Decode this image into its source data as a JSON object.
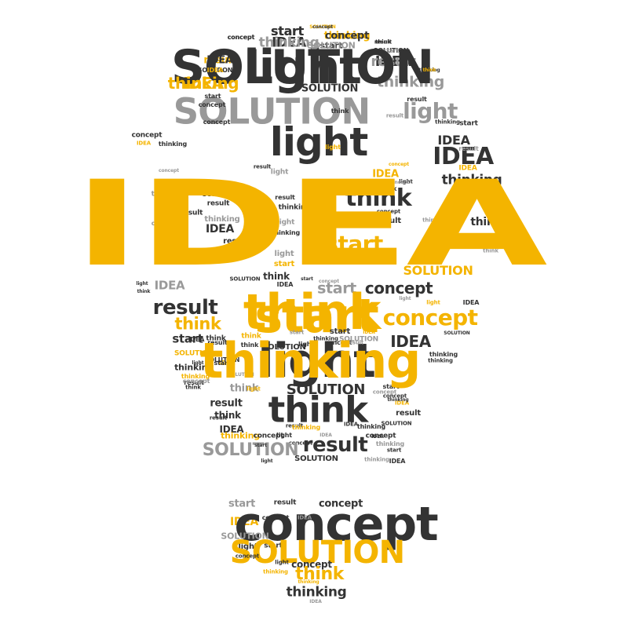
{
  "palette": {
    "dark": "#333333",
    "gray": "#999999",
    "yellow": "#f4b400"
  },
  "words": [
    {
      "text": "start",
      "tone": "dark"
    },
    {
      "text": "SOLUTION",
      "tone": "yellow"
    },
    {
      "text": "thinking",
      "tone": "yellow"
    },
    {
      "text": "IDEA",
      "tone": "dark"
    },
    {
      "text": "concept",
      "tone": "dark"
    },
    {
      "text": "start",
      "tone": "dark"
    },
    {
      "text": "think",
      "tone": "dark"
    },
    {
      "text": "SOLUTION",
      "tone": "dark"
    },
    {
      "text": "IDEA",
      "tone": "dark"
    },
    {
      "text": "result",
      "tone": "yellow"
    },
    {
      "text": "light",
      "tone": "dark"
    },
    {
      "text": "SOLUTION",
      "tone": "dark"
    },
    {
      "text": "thinking",
      "tone": "dark"
    },
    {
      "text": "IDEA",
      "tone": "yellow"
    },
    {
      "text": "thinking",
      "tone": "gray"
    },
    {
      "text": "SOLUTION",
      "tone": "dark"
    },
    {
      "text": "result",
      "tone": "dark"
    },
    {
      "text": "SOLUTION",
      "tone": "gray"
    },
    {
      "text": "light",
      "tone": "gray"
    },
    {
      "text": "think",
      "tone": "dark"
    },
    {
      "text": "start",
      "tone": "dark"
    },
    {
      "text": "concept",
      "tone": "dark"
    },
    {
      "text": "concept",
      "tone": "dark"
    },
    {
      "text": "result",
      "tone": "gray"
    },
    {
      "text": "start",
      "tone": "dark"
    },
    {
      "text": "concept",
      "tone": "dark"
    },
    {
      "text": "thinking",
      "tone": "dark"
    },
    {
      "text": "IDEA",
      "tone": "dark"
    },
    {
      "text": "IDEA",
      "tone": "dark"
    },
    {
      "text": "light",
      "tone": "dark"
    },
    {
      "text": "IDEA",
      "tone": "yellow"
    },
    {
      "text": "thinking",
      "tone": "dark"
    },
    {
      "text": "light",
      "tone": "yellow"
    },
    {
      "text": "result",
      "tone": "gray"
    },
    {
      "text": "concept",
      "tone": "yellow"
    },
    {
      "text": "IDEA",
      "tone": "yellow"
    },
    {
      "text": "thinking",
      "tone": "dark"
    },
    {
      "text": "concept",
      "tone": "gray"
    },
    {
      "text": "result",
      "tone": "dark"
    },
    {
      "text": "IDEA",
      "tone": "dark"
    },
    {
      "text": "thinking",
      "tone": "gray"
    },
    {
      "text": "SOLUTION",
      "tone": "dark"
    },
    {
      "text": "think",
      "tone": "dark"
    },
    {
      "text": "result",
      "tone": "dark"
    },
    {
      "text": "light",
      "tone": "gray"
    },
    {
      "text": "concept",
      "tone": "gray"
    },
    {
      "text": "IDEA",
      "tone": "yellow"
    },
    {
      "text": "light",
      "tone": "dark"
    },
    {
      "text": "result",
      "tone": "gray"
    },
    {
      "text": "think",
      "tone": "dark"
    },
    {
      "text": "result",
      "tone": "dark"
    },
    {
      "text": "start",
      "tone": "gray"
    },
    {
      "text": "result",
      "tone": "dark"
    },
    {
      "text": "result",
      "tone": "dark"
    },
    {
      "text": "concept",
      "tone": "gray"
    },
    {
      "text": "thinking",
      "tone": "gray"
    },
    {
      "text": "think",
      "tone": "dark"
    },
    {
      "text": "IDEA",
      "tone": "dark"
    },
    {
      "text": "thinking",
      "tone": "dark"
    },
    {
      "text": "light",
      "tone": "gray"
    },
    {
      "text": "concept",
      "tone": "dark"
    },
    {
      "text": "IDEA",
      "tone": "dark"
    },
    {
      "text": "light",
      "tone": "gray"
    },
    {
      "text": "thinking",
      "tone": "dark"
    },
    {
      "text": "result",
      "tone": "dark"
    },
    {
      "text": "think",
      "tone": "gray"
    },
    {
      "text": "light",
      "tone": "gray"
    },
    {
      "text": "result",
      "tone": "dark"
    },
    {
      "text": "light",
      "tone": "yellow"
    },
    {
      "text": "think",
      "tone": "gray"
    },
    {
      "text": "think",
      "tone": "dark"
    },
    {
      "text": "light",
      "tone": "dark"
    },
    {
      "text": "think",
      "tone": "gray"
    },
    {
      "text": "start",
      "tone": "yellow"
    },
    {
      "text": "light",
      "tone": "dark"
    },
    {
      "text": "thinking",
      "tone": "gray"
    },
    {
      "text": "start",
      "tone": "yellow"
    },
    {
      "text": "result",
      "tone": "gray"
    },
    {
      "text": "IDEA",
      "tone": "gray"
    },
    {
      "text": "SOLUTION",
      "tone": "dark"
    },
    {
      "text": "think",
      "tone": "dark"
    },
    {
      "text": "start",
      "tone": "dark"
    },
    {
      "text": "SOLUTION",
      "tone": "yellow"
    },
    {
      "text": "concept",
      "tone": "gray"
    },
    {
      "text": "IDEA",
      "tone": "dark"
    },
    {
      "text": "think",
      "tone": "dark"
    },
    {
      "text": "concept",
      "tone": "dark"
    },
    {
      "text": "light",
      "tone": "gray"
    },
    {
      "text": "result",
      "tone": "dark"
    },
    {
      "text": "start",
      "tone": "gray"
    },
    {
      "text": "light",
      "tone": "yellow"
    },
    {
      "text": "IDEA",
      "tone": "dark"
    },
    {
      "text": "think",
      "tone": "yellow"
    },
    {
      "text": "start",
      "tone": "yellow"
    },
    {
      "text": "concept",
      "tone": "yellow"
    },
    {
      "text": "start",
      "tone": "dark"
    },
    {
      "text": "start",
      "tone": "gray"
    },
    {
      "text": "think",
      "tone": "yellow"
    },
    {
      "text": "start",
      "tone": "dark"
    },
    {
      "text": "result",
      "tone": "dark"
    },
    {
      "text": "IDEA",
      "tone": "dark"
    },
    {
      "text": "IDEA",
      "tone": "yellow"
    },
    {
      "text": "SOLUTION",
      "tone": "dark"
    },
    {
      "text": "SOLUTION",
      "tone": "yellow"
    },
    {
      "text": "IDEA",
      "tone": "yellow"
    },
    {
      "text": "thinking",
      "tone": "dark"
    },
    {
      "text": "thinking",
      "tone": "dark"
    },
    {
      "text": "thinking",
      "tone": "dark"
    },
    {
      "text": "SOLUTION",
      "tone": "dark"
    },
    {
      "text": "light",
      "tone": "dark"
    },
    {
      "text": "thinking",
      "tone": "yellow"
    },
    {
      "text": "result",
      "tone": "dark"
    },
    {
      "text": "think",
      "tone": "gray"
    },
    {
      "text": "SOLUTION",
      "tone": "dark"
    },
    {
      "text": "start",
      "tone": "dark"
    },
    {
      "text": "concept",
      "tone": "dark"
    },
    {
      "text": "result",
      "tone": "dark"
    },
    {
      "text": "IDEA",
      "tone": "yellow"
    },
    {
      "text": "think",
      "tone": "dark"
    },
    {
      "text": "think",
      "tone": "dark"
    },
    {
      "text": "result",
      "tone": "dark"
    },
    {
      "text": "SOLUTION",
      "tone": "dark"
    },
    {
      "text": "IDEA",
      "tone": "dark"
    },
    {
      "text": "thinking",
      "tone": "yellow"
    },
    {
      "text": "concept",
      "tone": "dark"
    },
    {
      "text": "IDEA",
      "tone": "gray"
    },
    {
      "text": "concept",
      "tone": "dark"
    },
    {
      "text": "concept",
      "tone": "dark"
    },
    {
      "text": "thinking",
      "tone": "gray"
    },
    {
      "text": "SOLUTION",
      "tone": "gray"
    },
    {
      "text": "result",
      "tone": "dark"
    },
    {
      "text": "start",
      "tone": "dark"
    },
    {
      "text": "IDEA",
      "tone": "dark"
    },
    {
      "text": "SOLUTION",
      "tone": "dark"
    },
    {
      "text": "light",
      "tone": "dark"
    },
    {
      "text": "SOLUTION",
      "tone": "gray"
    },
    {
      "text": "IDEA",
      "tone": "dark"
    },
    {
      "text": "light",
      "tone": "dark"
    },
    {
      "text": "thinking",
      "tone": "dark"
    },
    {
      "text": "concept",
      "tone": "dark"
    },
    {
      "text": "result",
      "tone": "gray"
    },
    {
      "text": "SOLUTION",
      "tone": "dark"
    },
    {
      "text": "think",
      "tone": "dark"
    },
    {
      "text": "thinking",
      "tone": "dark"
    },
    {
      "text": "concept",
      "tone": "gray"
    },
    {
      "text": "result",
      "tone": "dark"
    },
    {
      "text": "think",
      "tone": "dark"
    },
    {
      "text": "light",
      "tone": "dark"
    },
    {
      "text": "start",
      "tone": "dark"
    },
    {
      "text": "IDEA",
      "tone": "dark"
    },
    {
      "text": "thinking",
      "tone": "dark"
    },
    {
      "text": "concept",
      "tone": "gray"
    },
    {
      "text": "light",
      "tone": "yellow"
    },
    {
      "text": "light",
      "tone": "dark"
    },
    {
      "text": "think",
      "tone": "dark"
    },
    {
      "text": "thinking",
      "tone": "gray"
    },
    {
      "text": "result",
      "tone": "dark"
    },
    {
      "text": "SOLUTION",
      "tone": "gray"
    },
    {
      "text": "start",
      "tone": "dark"
    },
    {
      "text": "IDEA",
      "tone": "dark"
    },
    {
      "text": "thinking",
      "tone": "yellow"
    },
    {
      "text": "start",
      "tone": "gray"
    },
    {
      "text": "result",
      "tone": "dark"
    },
    {
      "text": "concept",
      "tone": "dark"
    },
    {
      "text": "IDEA",
      "tone": "yellow"
    },
    {
      "text": "concept",
      "tone": "dark"
    },
    {
      "text": "SOLUTION",
      "tone": "gray"
    },
    {
      "text": "light",
      "tone": "dark"
    },
    {
      "text": "start",
      "tone": "dark"
    },
    {
      "text": "SOLUTION",
      "tone": "yellow"
    },
    {
      "text": "concept",
      "tone": "dark"
    },
    {
      "text": "light",
      "tone": "dark"
    },
    {
      "text": "concept",
      "tone": "dark"
    },
    {
      "text": "thinking",
      "tone": "yellow"
    },
    {
      "text": "think",
      "tone": "yellow"
    },
    {
      "text": "thinking",
      "tone": "dark"
    },
    {
      "text": "IDEA",
      "tone": "gray"
    },
    {
      "text": "thinking",
      "tone": "yellow"
    },
    {
      "text": "concept",
      "tone": "dark"
    },
    {
      "text": "IDEA",
      "tone": "gray"
    },
    {
      "text": "start",
      "tone": "dark"
    },
    {
      "text": "concept",
      "tone": "dark"
    },
    {
      "text": "concept",
      "tone": "dark"
    },
    {
      "text": "thinking",
      "tone": "gray"
    },
    {
      "text": "concept",
      "tone": "dark"
    },
    {
      "text": "SOLUTION",
      "tone": "gray"
    },
    {
      "text": "result",
      "tone": "dark"
    },
    {
      "text": "start",
      "tone": "gray"
    },
    {
      "text": "result",
      "tone": "gray"
    },
    {
      "text": "IDEA",
      "tone": "dark"
    },
    {
      "text": "SOLUTION",
      "tone": "dark"
    },
    {
      "text": "IDEA",
      "tone": "yellow"
    },
    {
      "text": "think",
      "tone": "yellow"
    },
    {
      "text": "thinking",
      "tone": "yellow"
    }
  ]
}
